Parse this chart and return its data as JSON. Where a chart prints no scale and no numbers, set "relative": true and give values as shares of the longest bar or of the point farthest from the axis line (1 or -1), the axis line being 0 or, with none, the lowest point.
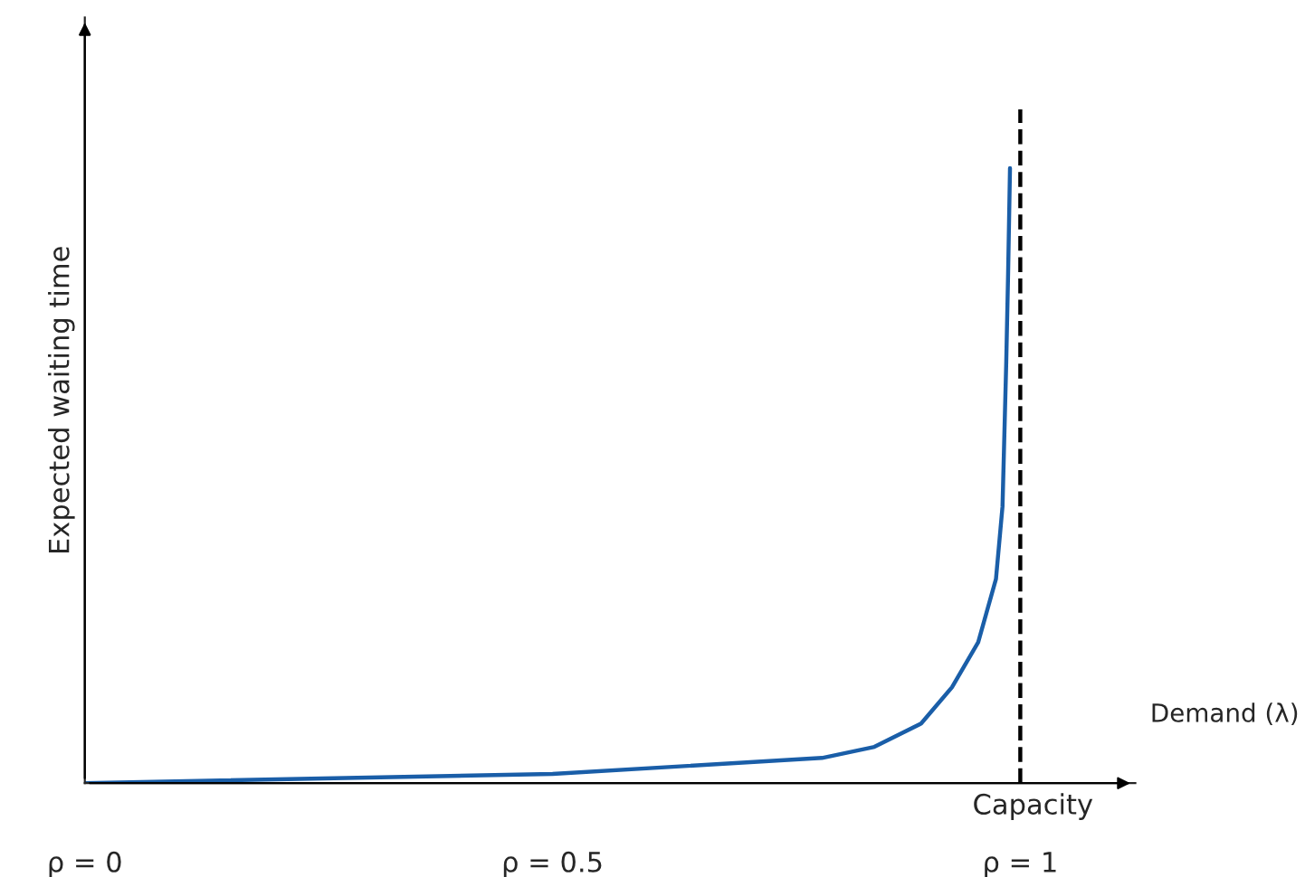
{
  "chart_data": {
    "type": "line",
    "relative": true,
    "xlabel": "Demand (λ)",
    "ylabel": "Expected waiting time",
    "x": [
      0,
      0.5,
      0.788,
      0.844,
      0.894,
      0.927,
      0.955,
      0.974,
      0.981,
      0.985,
      0.987,
      0.989
    ],
    "series": [
      {
        "color": "#1a5ea8",
        "values": [
          0,
          0.015,
          0.041,
          0.059,
          0.097,
          0.156,
          0.229,
          0.332,
          0.45,
          0.685,
          0.83,
          1
        ]
      }
    ],
    "xlim": [
      0,
      1.123
    ],
    "xticks": [
      {
        "value": 0,
        "label": "ρ = 0"
      },
      {
        "value": 0.5,
        "label": "ρ = 0.5"
      },
      {
        "value": 1,
        "label": "ρ = 1"
      }
    ],
    "ref_lines": [
      {
        "axis": "x",
        "value": 1,
        "label": "Capacity",
        "color": "#000000",
        "line_style": "dashed"
      }
    ],
    "grid": false,
    "legend": false,
    "marker": "none",
    "line_style": "solid"
  }
}
